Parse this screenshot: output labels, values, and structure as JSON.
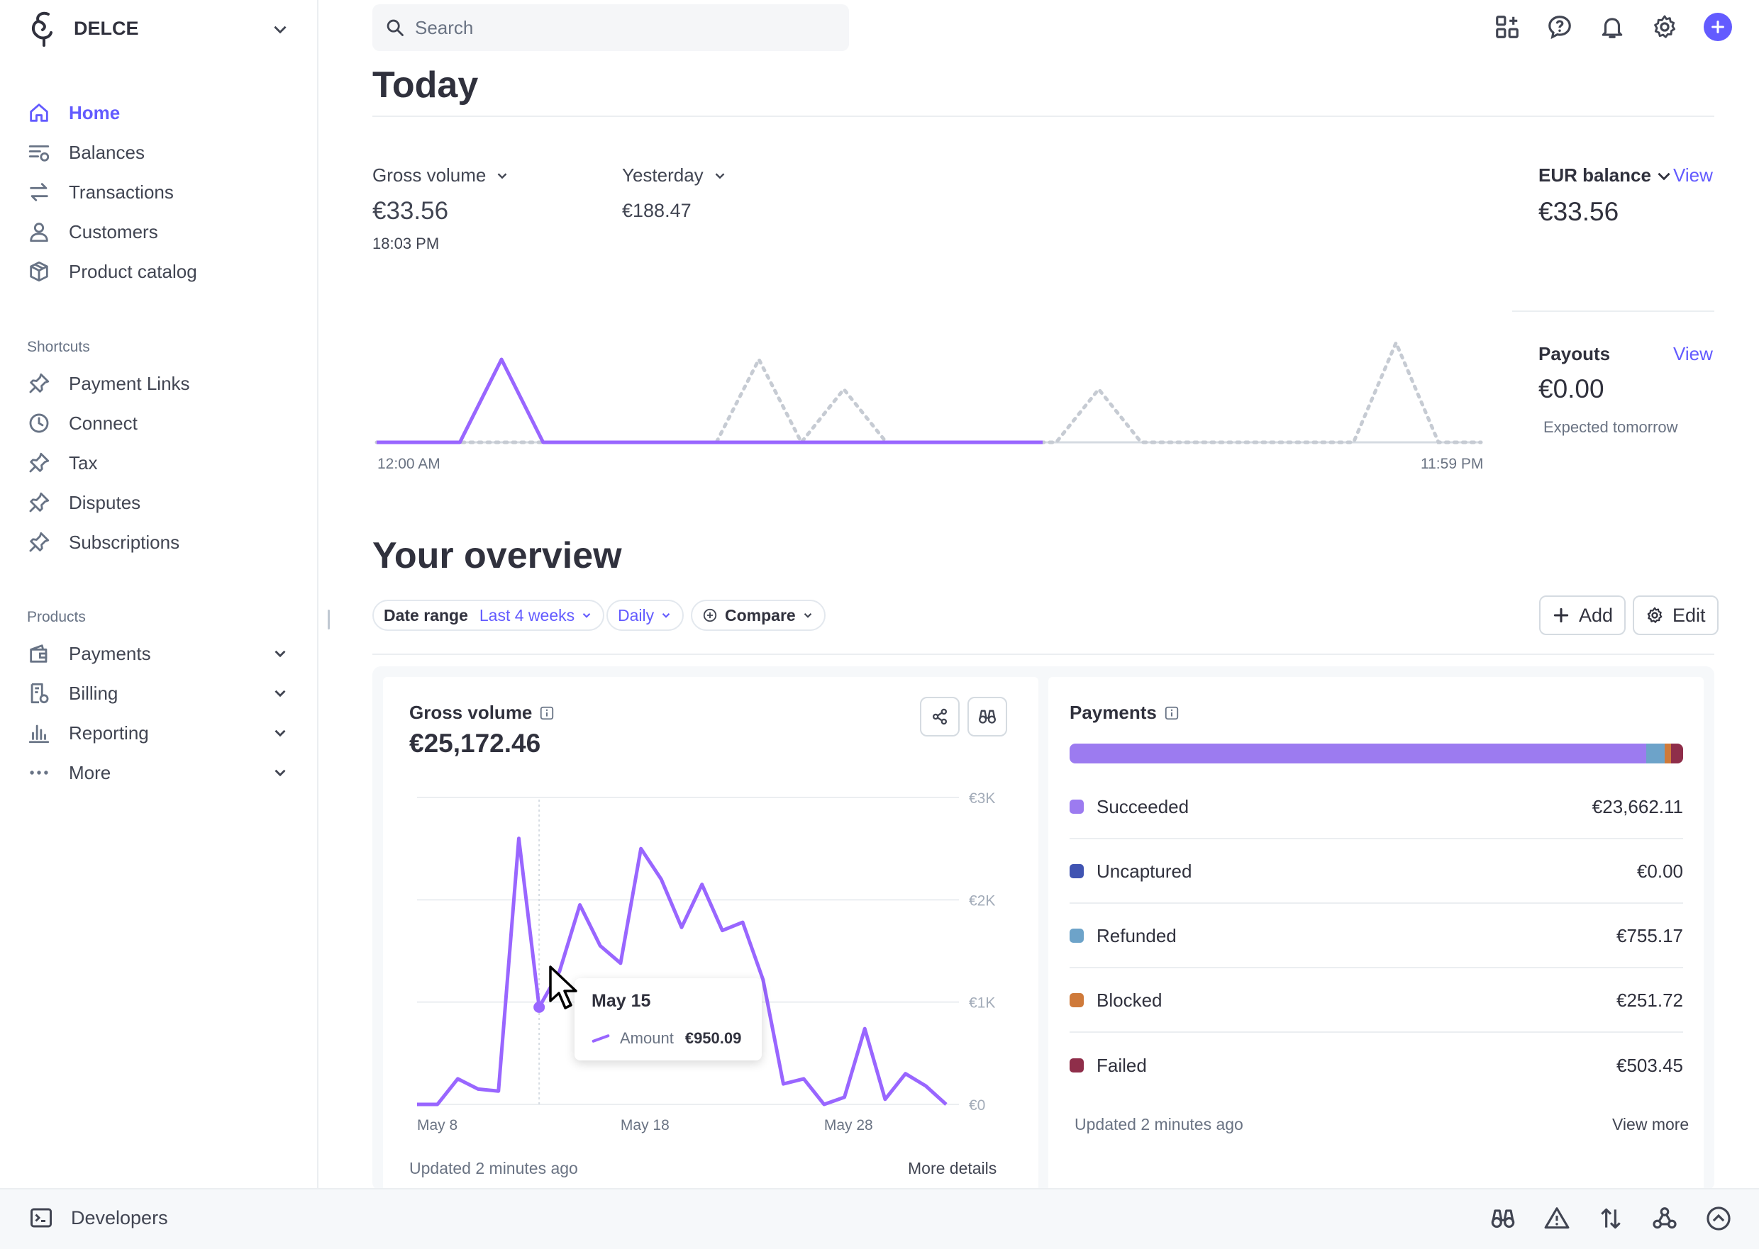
{
  "colors": {
    "accent": "#635bff",
    "series": "#9966ff",
    "succeeded": "#9c7bf0",
    "uncaptured": "#4054b2",
    "refunded": "#6da3c9",
    "blocked": "#cf7a3a",
    "failed": "#8f2e4a"
  },
  "sidebar": {
    "account_name": "DELCE",
    "nav": [
      {
        "label": "Home",
        "icon": "home-icon",
        "active": true
      },
      {
        "label": "Balances",
        "icon": "balances-icon"
      },
      {
        "label": "Transactions",
        "icon": "transactions-icon"
      },
      {
        "label": "Customers",
        "icon": "customer-icon"
      },
      {
        "label": "Product catalog",
        "icon": "box-icon"
      }
    ],
    "shortcuts_label": "Shortcuts",
    "shortcuts": [
      {
        "label": "Payment Links",
        "icon": "pin-icon"
      },
      {
        "label": "Connect",
        "icon": "clock-icon"
      },
      {
        "label": "Tax",
        "icon": "pin-icon"
      },
      {
        "label": "Disputes",
        "icon": "pin-icon"
      },
      {
        "label": "Subscriptions",
        "icon": "pin-icon"
      }
    ],
    "products_label": "Products",
    "products": [
      {
        "label": "Payments",
        "icon": "wallet-icon"
      },
      {
        "label": "Billing",
        "icon": "billing-icon"
      },
      {
        "label": "Reporting",
        "icon": "bar-chart-icon"
      },
      {
        "label": "More",
        "icon": "more-dots-icon"
      }
    ]
  },
  "bottom": {
    "developers_label": "Developers"
  },
  "search": {
    "placeholder": "Search"
  },
  "today": {
    "title": "Today",
    "gross_label": "Gross volume",
    "gross_value": "€33.56",
    "gross_time": "18:03 PM",
    "yesterday_label": "Yesterday",
    "yesterday_value": "€188.47",
    "axis_start": "12:00 AM",
    "axis_end": "11:59 PM",
    "eur_balance_label": "EUR balance",
    "eur_balance_link": "View",
    "eur_balance_value": "€33.56",
    "payouts_label": "Payouts",
    "payouts_link": "View",
    "payouts_value": "€0.00",
    "payouts_sub": "Expected tomorrow"
  },
  "overview": {
    "title": "Your overview",
    "date_range_label": "Date range",
    "date_range_value": "Last 4 weeks",
    "interval": "Daily",
    "compare_label": "Compare",
    "add_label": "Add",
    "edit_label": "Edit"
  },
  "gross_card": {
    "title": "Gross volume",
    "amount": "€25,172.46",
    "updated": "Updated 2 minutes ago",
    "more_details": "More details",
    "tooltip_date": "May 15",
    "tooltip_label": "Amount",
    "tooltip_value": "€950.09"
  },
  "payments_card": {
    "title": "Payments",
    "updated": "Updated 2 minutes ago",
    "view_more": "View more",
    "rows": [
      {
        "label": "Succeeded",
        "amount": "€23,662.11",
        "color_key": "succeeded"
      },
      {
        "label": "Uncaptured",
        "amount": "€0.00",
        "color_key": "uncaptured"
      },
      {
        "label": "Refunded",
        "amount": "€755.17",
        "color_key": "refunded"
      },
      {
        "label": "Blocked",
        "amount": "€251.72",
        "color_key": "blocked"
      },
      {
        "label": "Failed",
        "amount": "€503.45",
        "color_key": "failed"
      }
    ]
  },
  "chart_data": [
    {
      "type": "line",
      "title": "",
      "x_ticks": [
        "12:00 AM",
        "11:59 PM"
      ],
      "series": [
        {
          "values": [
            0,
            0,
            0,
            0.5,
            0,
            0,
            0,
            0,
            0,
            0,
            0,
            0,
            0,
            0,
            0,
            0,
            0
          ]
        },
        {
          "values": [
            0,
            0,
            0,
            0,
            0,
            0,
            0,
            0,
            0,
            0.5,
            0,
            0.32,
            0,
            0,
            0,
            0,
            0,
            0.32,
            0,
            0,
            0,
            0,
            0,
            0,
            0.6,
            0,
            0
          ]
        }
      ]
    },
    {
      "type": "line",
      "title": "Gross volume",
      "x_ticks": [
        "May 8",
        "May 18",
        "May 28"
      ],
      "y_ticks": [
        "€0",
        "€1K",
        "€2K",
        "€3K"
      ],
      "ylim": [
        0,
        3000
      ],
      "series": [
        {
          "name": "Amount",
          "values": [
            0,
            0,
            250,
            150,
            130,
            2600,
            950,
            1300,
            1950,
            1550,
            1380,
            2500,
            2200,
            1730,
            2150,
            1700,
            1780,
            1220,
            200,
            250,
            0,
            70,
            740,
            50,
            300,
            180,
            0
          ]
        }
      ]
    },
    {
      "type": "bar",
      "title": "Payments",
      "categories": [
        "Succeeded",
        "Uncaptured",
        "Refunded",
        "Blocked",
        "Failed"
      ],
      "values": [
        23662.11,
        0,
        755.17,
        251.72,
        503.45
      ]
    }
  ]
}
